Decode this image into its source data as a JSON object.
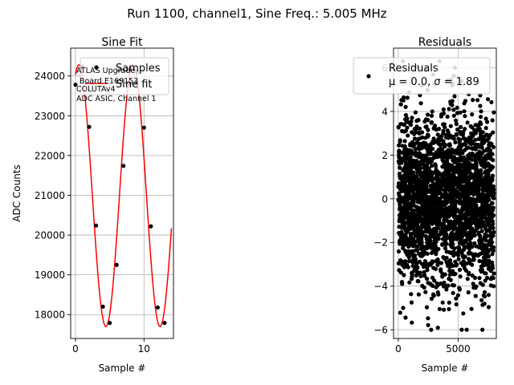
{
  "figure": {
    "suptitle": "Run 1100, channel1, Sine Freq.: 5.005 MHz"
  },
  "chart_data": [
    {
      "type": "scatter",
      "title": "Sine Fit",
      "xlabel": "Sample #",
      "ylabel": "ADC Counts",
      "xlim": [
        -0.7,
        14.3
      ],
      "ylim": [
        17400,
        24700
      ],
      "xticks": [
        0,
        10
      ],
      "yticks": [
        18000,
        19000,
        20000,
        21000,
        22000,
        23000,
        24000
      ],
      "grid": true,
      "legend_position": "top-right",
      "legend": [
        "Samples",
        "Sine fit"
      ],
      "annotation": [
        "ATLAS Upgrade",
        "Board E169153",
        "COLUTAv4",
        "ADC ASIC, Channel 1"
      ],
      "series": [
        {
          "name": "Samples",
          "kind": "scatter",
          "color": "#000000",
          "x": [
            0,
            1,
            2,
            3,
            4,
            5,
            6,
            7,
            8,
            9,
            10,
            11,
            12,
            13
          ],
          "y": [
            23780,
            24230,
            22720,
            20240,
            18200,
            17790,
            19250,
            21740,
            23800,
            24100,
            22700,
            20220,
            18180,
            17790
          ]
        },
        {
          "name": "Sine fit",
          "kind": "line",
          "color": "#ff0000",
          "model": {
            "offset": 20990,
            "amplitude": 3290,
            "period": 7.9,
            "phase": 1.18,
            "x_start": 0,
            "x_end": 14
          }
        }
      ]
    },
    {
      "type": "scatter",
      "title": "Residuals",
      "xlabel": "Sample #",
      "ylabel": "",
      "xlim": [
        -400,
        8200
      ],
      "ylim": [
        -6.4,
        6.9
      ],
      "xticks": [
        0,
        5000
      ],
      "yticks": [
        -6,
        -4,
        -2,
        0,
        2,
        4,
        6
      ],
      "grid": true,
      "legend_position": "top-right",
      "legend": [
        "Residuals",
        "μ = 0.0, σ = 1.89"
      ],
      "series": [
        {
          "name": "Residuals",
          "kind": "scatter",
          "color": "#000000",
          "summary": {
            "n_points": 8000,
            "mean": 0.0,
            "std": 1.89,
            "x_range": [
              0,
              8000
            ],
            "y_range": [
              -6.0,
              6.3
            ]
          }
        }
      ]
    }
  ]
}
